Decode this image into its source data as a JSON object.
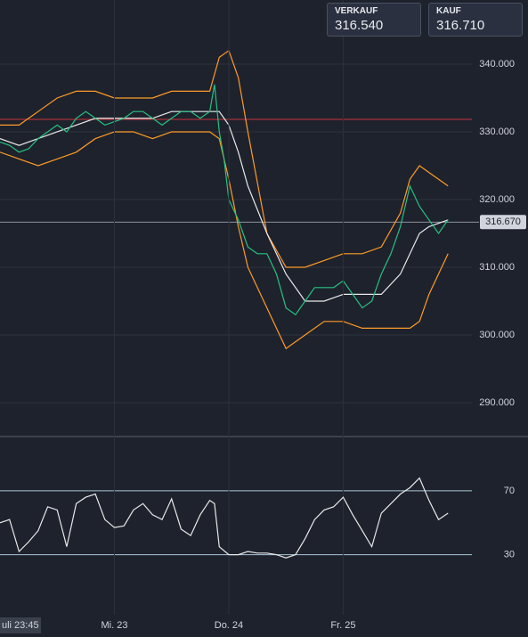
{
  "quotes": [
    {
      "label": "VERKAUF",
      "value": "316.540"
    },
    {
      "label": "KAUF",
      "value": "316.710"
    }
  ],
  "chart_data": [
    {
      "type": "line",
      "xlim": [
        0,
        99
      ],
      "ylim": [
        285,
        349.47
      ],
      "yticks": [
        {
          "value": 290,
          "label": "290.000"
        },
        {
          "value": 300,
          "label": "300.000"
        },
        {
          "value": 310,
          "label": "310.000"
        },
        {
          "value": 320,
          "label": "320.000"
        },
        {
          "value": 330,
          "label": "330.000"
        },
        {
          "value": 340,
          "label": "340.000"
        }
      ],
      "grid": true,
      "last_price": {
        "value": 316.67,
        "label": "316.670"
      },
      "reference_line": 331.84,
      "series": [
        {
          "color": "#ff9b26",
          "x": [
            0,
            4,
            8,
            12,
            16,
            20,
            24,
            28,
            32,
            36,
            40,
            44,
            46,
            48,
            50,
            52,
            56,
            60,
            64,
            68,
            72,
            76,
            80,
            84,
            86,
            88,
            90,
            94
          ],
          "values": [
            331,
            331,
            333,
            335,
            336,
            336,
            335,
            335,
            335,
            336,
            336,
            336,
            341,
            342,
            338,
            330,
            315,
            310,
            310,
            311,
            312,
            312,
            313,
            318,
            323,
            325,
            324,
            322
          ]
        },
        {
          "color": "#e8e8e8",
          "x": [
            0,
            4,
            8,
            12,
            16,
            20,
            24,
            28,
            32,
            36,
            40,
            44,
            46,
            48,
            50,
            52,
            56,
            60,
            64,
            68,
            72,
            76,
            80,
            84,
            86,
            88,
            90,
            94
          ],
          "values": [
            329,
            328,
            329,
            330,
            331,
            332,
            332,
            332,
            332,
            333,
            333,
            333,
            333,
            331,
            327,
            322,
            315,
            309,
            305,
            305,
            306,
            306,
            306,
            309,
            312,
            315,
            316,
            317
          ]
        },
        {
          "color": "#ff9b26",
          "x": [
            0,
            4,
            8,
            12,
            16,
            20,
            24,
            28,
            32,
            36,
            40,
            44,
            46,
            48,
            50,
            52,
            56,
            60,
            64,
            68,
            72,
            76,
            80,
            84,
            86,
            88,
            90,
            94
          ],
          "values": [
            327,
            326,
            325,
            326,
            327,
            329,
            330,
            330,
            329,
            330,
            330,
            330,
            329,
            323,
            316,
            310,
            304,
            298,
            300,
            302,
            302,
            301,
            301,
            301,
            301,
            302,
            306,
            312
          ]
        },
        {
          "color": "#26c281",
          "x": [
            0,
            2,
            4,
            6,
            8,
            10,
            12,
            14,
            16,
            18,
            20,
            22,
            24,
            26,
            28,
            30,
            32,
            34,
            36,
            38,
            40,
            42,
            44,
            45,
            46,
            47,
            48,
            50,
            52,
            54,
            56,
            58,
            60,
            62,
            64,
            66,
            68,
            70,
            72,
            74,
            76,
            78,
            80,
            82,
            84,
            86,
            88,
            90,
            92,
            94
          ],
          "values": [
            328.5,
            328,
            327,
            327.5,
            329,
            330,
            331,
            330,
            332,
            333,
            332,
            331,
            331.5,
            332,
            333,
            333,
            332,
            331,
            332,
            333,
            333,
            332,
            333,
            337,
            330,
            326,
            320,
            317,
            313,
            312,
            312,
            309,
            304,
            303,
            305,
            307,
            307,
            307,
            308,
            306,
            304,
            305,
            309,
            312,
            316,
            322,
            319,
            317,
            315,
            317
          ]
        }
      ]
    },
    {
      "type": "line",
      "xlim": [
        0,
        99
      ],
      "ylim": [
        -7.6,
        104
      ],
      "yticks": [
        30,
        70
      ],
      "xticks": [
        {
          "value": 24,
          "label": "Mi. 23"
        },
        {
          "value": 48,
          "label": "Do. 24"
        },
        {
          "value": 72,
          "label": "Fr. 25"
        }
      ],
      "crosshair_label": "uli 23:45",
      "series": [
        {
          "color": "#e8e8e8",
          "x": [
            0,
            2,
            4,
            6,
            8,
            10,
            12,
            14,
            16,
            18,
            20,
            22,
            24,
            26,
            28,
            30,
            32,
            34,
            36,
            38,
            40,
            42,
            44,
            45,
            46,
            48,
            50,
            52,
            54,
            56,
            58,
            60,
            62,
            64,
            66,
            68,
            70,
            72,
            74,
            76,
            78,
            80,
            82,
            84,
            86,
            88,
            90,
            92,
            94
          ],
          "values": [
            50,
            52,
            32,
            38,
            45,
            60,
            58,
            35,
            62,
            66,
            68,
            52,
            47,
            48,
            58,
            62,
            55,
            52,
            65,
            46,
            42,
            55,
            64,
            62,
            35,
            30,
            30,
            32,
            31,
            31,
            30,
            28,
            30,
            40,
            52,
            58,
            60,
            66,
            55,
            45,
            35,
            56,
            62,
            68,
            72,
            78,
            64,
            52,
            56
          ]
        }
      ]
    }
  ]
}
